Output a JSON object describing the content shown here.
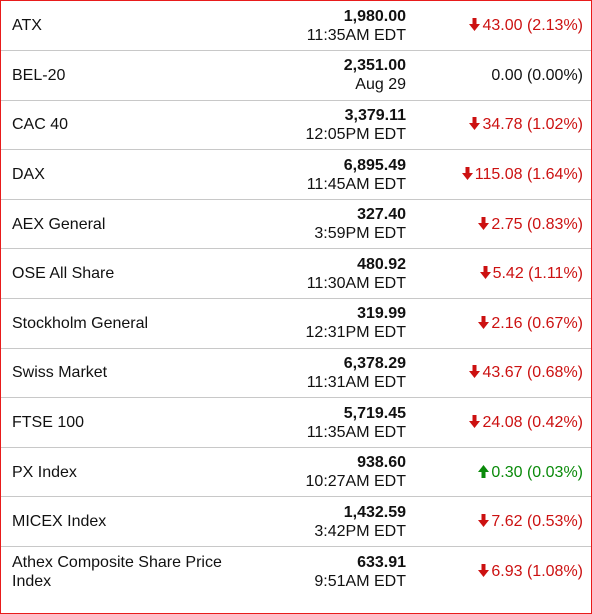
{
  "colors": {
    "down": "#cc1111",
    "up": "#0a8a0a",
    "flat": "#111111",
    "border": "#e81b1b"
  },
  "indices": [
    {
      "name": "ATX",
      "price": "1,980.00",
      "time": "11:35AM EDT",
      "change": "43.00 (2.13%)",
      "direction": "down",
      "icon": "arrow-down-icon"
    },
    {
      "name": "BEL-20",
      "price": "2,351.00",
      "time": "Aug 29",
      "change": "0.00 (0.00%)",
      "direction": "flat",
      "icon": ""
    },
    {
      "name": "CAC 40",
      "price": "3,379.11",
      "time": "12:05PM EDT",
      "change": "34.78 (1.02%)",
      "direction": "down",
      "icon": "arrow-down-icon"
    },
    {
      "name": "DAX",
      "price": "6,895.49",
      "time": "11:45AM EDT",
      "change": "115.08 (1.64%)",
      "direction": "down",
      "icon": "arrow-down-icon"
    },
    {
      "name": "AEX General",
      "price": "327.40",
      "time": "3:59PM EDT",
      "change": "2.75 (0.83%)",
      "direction": "down",
      "icon": "arrow-down-icon"
    },
    {
      "name": "OSE All Share",
      "price": "480.92",
      "time": "11:30AM EDT",
      "change": "5.42 (1.11%)",
      "direction": "down",
      "icon": "arrow-down-icon"
    },
    {
      "name": "Stockholm General",
      "price": "319.99",
      "time": "12:31PM EDT",
      "change": "2.16 (0.67%)",
      "direction": "down",
      "icon": "arrow-down-icon"
    },
    {
      "name": "Swiss Market",
      "price": "6,378.29",
      "time": "11:31AM EDT",
      "change": "43.67 (0.68%)",
      "direction": "down",
      "icon": "arrow-down-icon"
    },
    {
      "name": "FTSE 100",
      "price": "5,719.45",
      "time": "11:35AM EDT",
      "change": "24.08 (0.42%)",
      "direction": "down",
      "icon": "arrow-down-icon"
    },
    {
      "name": "PX Index",
      "price": "938.60",
      "time": "10:27AM EDT",
      "change": "0.30 (0.03%)",
      "direction": "up",
      "icon": "arrow-up-icon"
    },
    {
      "name": "MICEX Index",
      "price": "1,432.59",
      "time": "3:42PM EDT",
      "change": "7.62 (0.53%)",
      "direction": "down",
      "icon": "arrow-down-icon"
    },
    {
      "name": "Athex Composite Share Price Index",
      "price": "633.91",
      "time": "9:51AM EDT",
      "change": "6.93 (1.08%)",
      "direction": "down",
      "icon": "arrow-down-icon"
    }
  ]
}
